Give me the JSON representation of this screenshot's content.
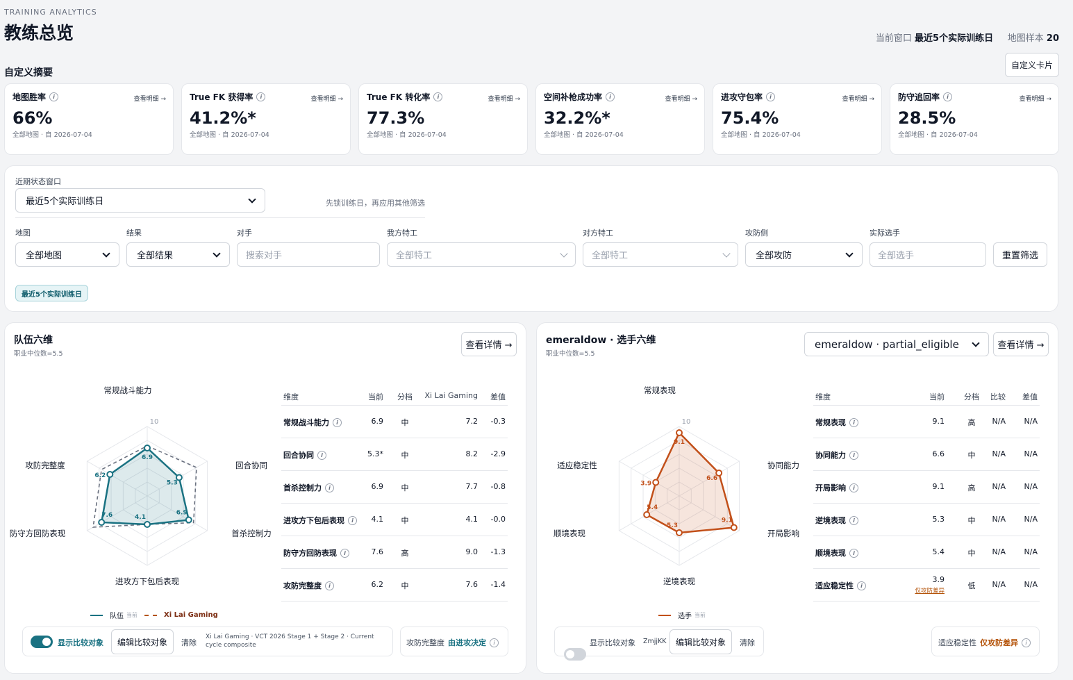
{
  "header": {
    "eyebrow": "TRAINING ANALYTICS",
    "title": "教练总览",
    "window_label": "当前窗口",
    "window_value": "最近5个实际训练日",
    "sample_label": "地图样本",
    "sample_value": "20"
  },
  "summary": {
    "title": "自定义摘要",
    "custom_button": "自定义卡片",
    "cards": [
      {
        "label": "地图胜率",
        "link": "查看明细 →",
        "value": "66%",
        "sub": "全部地图 · 自 2026-07-04"
      },
      {
        "label": "True FK 获得率",
        "link": "查看明细 →",
        "value": "41.2%*",
        "sub": "全部地图 · 自 2026-07-04"
      },
      {
        "label": "True FK 转化率",
        "link": "查看明细 →",
        "value": "77.3%",
        "sub": "全部地图 · 自 2026-07-04"
      },
      {
        "label": "空间补枪成功率",
        "link": "查看明细 →",
        "value": "32.2%*",
        "sub": "全部地图 · 自 2026-07-04"
      },
      {
        "label": "进攻守包率",
        "link": "查看明细 →",
        "value": "75.4%",
        "sub": "全部地图 · 自 2026-07-04"
      },
      {
        "label": "防守追回率",
        "link": "查看明细 →",
        "value": "28.5%",
        "sub": "全部地图 · 自 2026-07-04"
      }
    ]
  },
  "filters": {
    "window_label": "近期状态窗口",
    "window_value": "最近5个实际训练日",
    "window_hint": "先锁训练日，再应用其他筛选",
    "map_label": "地图",
    "map_value": "全部地图",
    "result_label": "结果",
    "result_value": "全部结果",
    "opponent_label": "对手",
    "opponent_placeholder": "搜索对手",
    "our_agent_label": "我方特工",
    "our_agent_placeholder": "全部特工",
    "opp_agent_label": "对方特工",
    "opp_agent_placeholder": "全部特工",
    "side_label": "攻防侧",
    "side_value": "全部攻防",
    "player_label": "实际选手",
    "player_placeholder": "全部选手",
    "reset_button": "重置筛选",
    "active_chip": "最近5个实际训练日"
  },
  "team_panel": {
    "title": "队伍六维",
    "subtitle": "职业中位数=5.5",
    "details_button": "查看详情 →",
    "axes": [
      "常规战斗能力",
      "回合协同",
      "首杀控制力",
      "进攻方下包后表现",
      "防守方回防表现",
      "攻防完整度"
    ],
    "scale_max": "10",
    "current": [
      6.9,
      5.3,
      6.9,
      4.1,
      7.6,
      6.2
    ],
    "current_labels": [
      "6.9",
      "5.3",
      "6.9",
      "4.1",
      "7.6",
      "6.2"
    ],
    "compare": [
      7.2,
      8.2,
      7.7,
      4.1,
      9.0,
      7.6
    ],
    "legend_current": "队伍",
    "legend_current_tag": "当前",
    "legend_compare": "Xi Lai Gaming",
    "table_headers": [
      "维度",
      "当前",
      "分档",
      "Xi Lai Gaming",
      "差值"
    ],
    "rows": [
      {
        "dim": "常规战斗能力",
        "cur": "6.9",
        "tier": "中",
        "cmp": "7.2",
        "diff": "-0.3"
      },
      {
        "dim": "回合协同",
        "cur": "5.3*",
        "tier": "中",
        "cmp": "8.2",
        "diff": "-2.9"
      },
      {
        "dim": "首杀控制力",
        "cur": "6.9",
        "tier": "中",
        "cmp": "7.7",
        "diff": "-0.8"
      },
      {
        "dim": "进攻方下包后表现",
        "cur": "4.1",
        "tier": "中",
        "cmp": "4.1",
        "diff": "-0.0"
      },
      {
        "dim": "防守方回防表现",
        "cur": "7.6",
        "tier": "高",
        "cmp": "9.0",
        "diff": "-1.3"
      },
      {
        "dim": "攻防完整度",
        "cur": "6.2",
        "tier": "中",
        "cmp": "7.6",
        "diff": "-1.4"
      }
    ],
    "toggle_label": "显示比较对象",
    "edit_button": "编辑比较对象",
    "clear_button": "清除",
    "compare_note": "Xi Lai Gaming · VCT 2026 Stage 1 + Stage 2 · Current cycle composite",
    "insight_label": "攻防完整度",
    "insight_value": "由进攻决定",
    "color_current": "#1a7282",
    "color_compare": "#6b7280"
  },
  "player_panel": {
    "title": "emeraldow · 选手六维",
    "subtitle": "职业中位数=5.5",
    "player_select": "emeraldow · partial_eligible",
    "details_button": "查看详情 →",
    "axes": [
      "常规表现",
      "协同能力",
      "开局影响",
      "逆境表现",
      "顺境表现",
      "适应稳定性"
    ],
    "scale_max": "10",
    "current": [
      9.1,
      6.6,
      9.1,
      5.3,
      5.4,
      3.9
    ],
    "current_labels": [
      "9.1",
      "6.6",
      "9.1",
      "5.3",
      "5.4",
      "3.9"
    ],
    "legend_current": "选手",
    "legend_current_tag": "当前",
    "table_headers": [
      "维度",
      "当前",
      "分档",
      "比较",
      "差值"
    ],
    "rows": [
      {
        "dim": "常规表现",
        "cur": "9.1",
        "tier": "高",
        "cmp": "N/A",
        "diff": "N/A"
      },
      {
        "dim": "协同能力",
        "cur": "6.6",
        "tier": "中",
        "cmp": "N/A",
        "diff": "N/A"
      },
      {
        "dim": "开局影响",
        "cur": "9.1",
        "tier": "高",
        "cmp": "N/A",
        "diff": "N/A"
      },
      {
        "dim": "逆境表现",
        "cur": "5.3",
        "tier": "中",
        "cmp": "N/A",
        "diff": "N/A"
      },
      {
        "dim": "顺境表现",
        "cur": "5.4",
        "tier": "中",
        "cmp": "N/A",
        "diff": "N/A"
      },
      {
        "dim": "适应稳定性",
        "cur": "3.9",
        "tier": "低",
        "cmp": "N/A",
        "diff": "N/A",
        "note": "仅攻防差异"
      }
    ],
    "toggle_label": "显示比较对象",
    "compare_name": "ZmjjKK",
    "edit_button": "编辑比较对象",
    "clear_button": "清除",
    "insight_label": "适应稳定性",
    "insight_value": "仅攻防差异",
    "color_current": "#c2501a"
  }
}
